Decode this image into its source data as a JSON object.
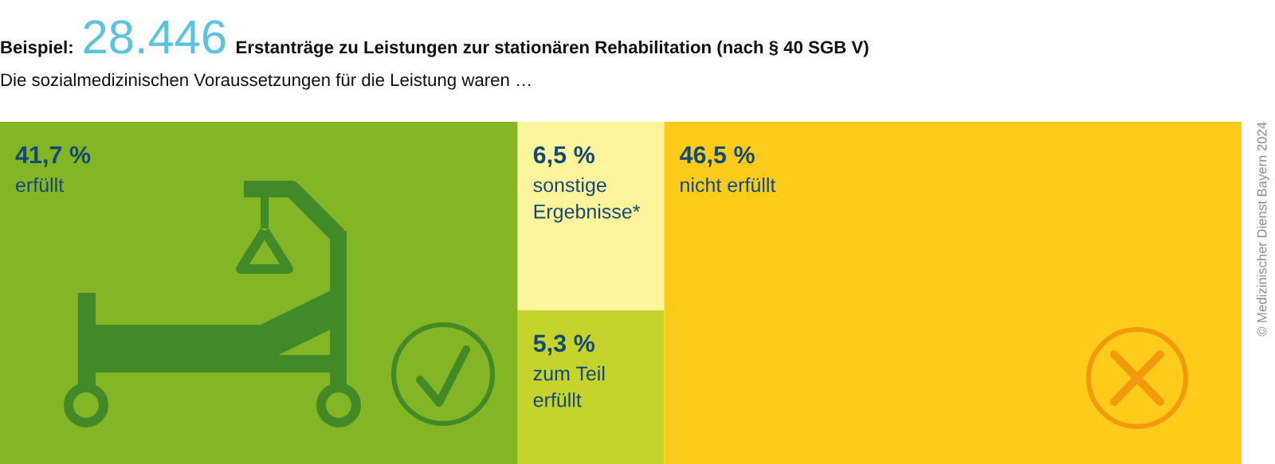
{
  "chart_data": {
    "type": "other",
    "title": "Beispiel: 28.446 Erstanträge zu Leistungen zur stationären Rehabilitation (nach § 40 SGB V)",
    "subtitle": "Die sozialmedizinischen Voraussetzungen für die Leistung waren …",
    "categories": [
      "erfüllt",
      "sonstige\nErgebnisse*",
      "zum Teil\nerfüllt",
      "nicht erfüllt"
    ],
    "values": [
      41.7,
      6.5,
      5.3,
      46.5
    ],
    "value_labels": [
      "41,7 %",
      "6,5 %",
      "5,3 %",
      "46,5 %"
    ],
    "colors": [
      "#84b524",
      "#fef49c",
      "#c6d32c",
      "#fecb1a"
    ],
    "annotations": [
      "© Medizinischer Dienst Bayern 2024"
    ]
  }
}
